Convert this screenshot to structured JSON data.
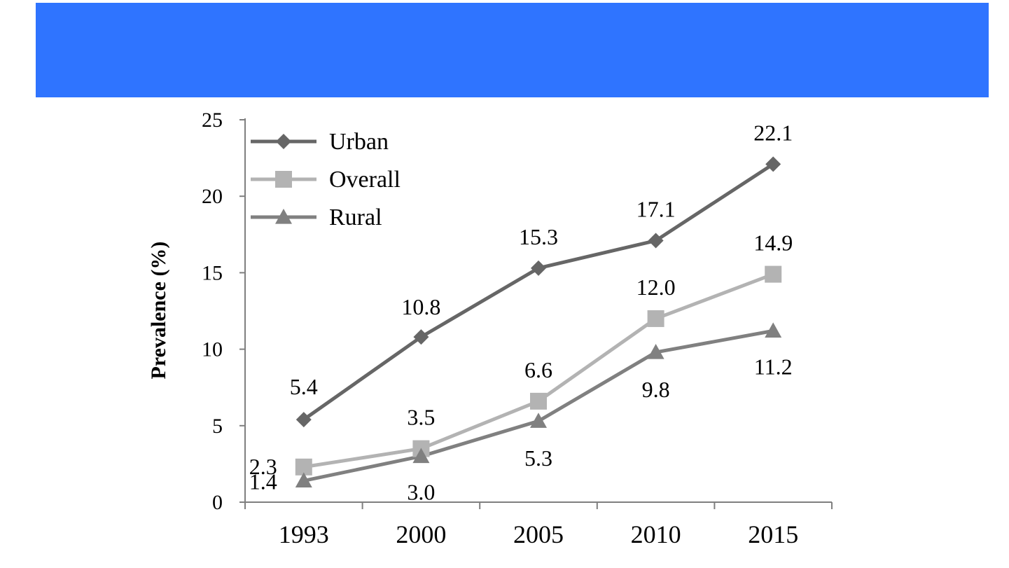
{
  "theme": {
    "header_color": "#2F74FF",
    "axis_color": "#7f7f7f",
    "label_color": "#000000"
  },
  "chart_data": {
    "type": "line",
    "title": "",
    "xlabel": "",
    "ylabel": "Prevalence (%)",
    "categories": [
      "1993",
      "2000",
      "2005",
      "2010",
      "2015"
    ],
    "ylim": [
      0,
      25
    ],
    "yticks": [
      0,
      5,
      10,
      15,
      20,
      25
    ],
    "legend_position": "top-left",
    "grid": false,
    "series": [
      {
        "name": "Urban",
        "marker": "diamond",
        "color": "#666666",
        "values": [
          5.4,
          10.8,
          15.3,
          17.1,
          22.1
        ],
        "labels": [
          "5.4",
          "10.8",
          "15.3",
          "17.1",
          "22.1"
        ]
      },
      {
        "name": "Overall",
        "marker": "square",
        "color": "#b3b3b3",
        "values": [
          2.3,
          3.5,
          6.6,
          12.0,
          14.9
        ],
        "labels": [
          "2.3",
          "3.5",
          "6.6",
          "12.0",
          "14.9"
        ]
      },
      {
        "name": "Rural",
        "marker": "triangle",
        "color": "#808080",
        "values": [
          1.4,
          3.0,
          5.3,
          9.8,
          11.2
        ],
        "labels": [
          "1.4",
          "3.0",
          "5.3",
          "9.8",
          "11.2"
        ]
      }
    ]
  }
}
